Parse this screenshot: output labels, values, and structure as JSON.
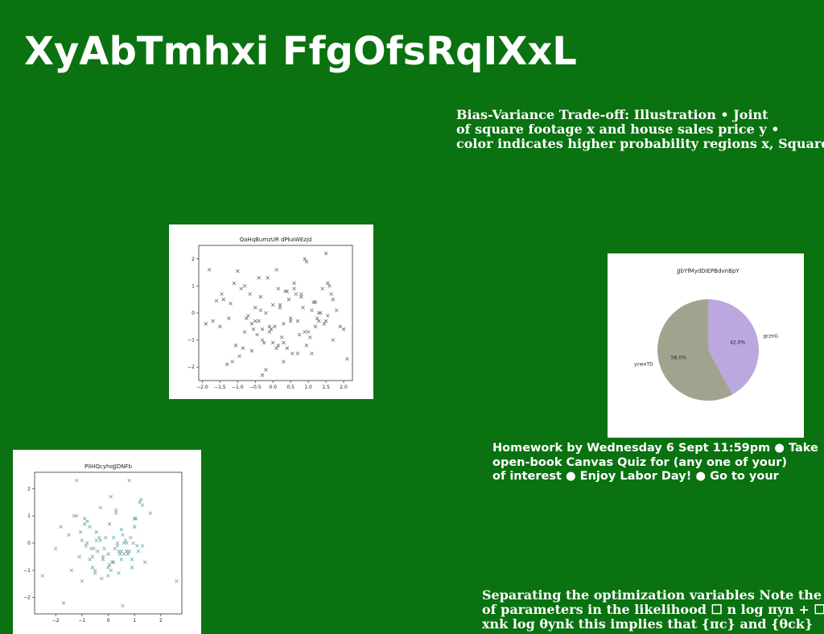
{
  "page": {
    "title": "XyAbTmhxi FfgOfsRqIXxL"
  },
  "text_blocks": {
    "bias_variance": {
      "lines": [
        "Bias-Variance Trade-off: Illustration • Joint",
        "of square footage x and house sales price y •",
        "color indicates higher probability regions x, Square"
      ]
    },
    "homework": {
      "lines": [
        "Homework by Wednesday 6 Sept 11:59pm ● Take",
        "open-book Canvas Quiz for (any one of your)",
        "of interest ● Enjoy Labor Day! ● Go to your"
      ]
    },
    "optimization": {
      "lines": [
        "Separating the optimization variables Note the",
        "of parameters in the likelihood ☐ n log πyn + ☐",
        "xnk log θynk this implies that {πc} and {θck}"
      ]
    }
  },
  "chart_data": [
    {
      "id": "scatter_a",
      "type": "scatter",
      "title": "QaHqBumzUR dPkaWEzjd",
      "marker": "x",
      "color": "#6e6e72",
      "xlim": [
        -2.1,
        2.25
      ],
      "ylim": [
        -2.5,
        2.5
      ],
      "xticks": [
        -2.0,
        -1.5,
        -1.0,
        -0.5,
        0.0,
        0.5,
        1.0,
        1.5,
        2.0
      ],
      "xtick_labels": [
        "−2.0",
        "−1.5",
        "−1.0",
        "−0.5",
        "0.0",
        "0.5",
        "1.0",
        "1.5",
        "2.0"
      ],
      "yticks": [
        -2,
        -1,
        0,
        1,
        2
      ],
      "ytick_labels": [
        "−2",
        "−1",
        "0",
        "1",
        "2"
      ],
      "x": [
        -1.8,
        -1.4,
        -1.6,
        -1.2,
        -1.0,
        -0.9,
        -0.8,
        -0.7,
        -0.6,
        -0.5,
        -0.4,
        -0.3,
        -0.2,
        -0.1,
        0.0,
        0.1,
        0.2,
        0.3,
        0.4,
        0.5,
        0.6,
        0.7,
        0.8,
        0.9,
        1.0,
        1.1,
        1.2,
        1.3,
        1.4,
        1.5,
        1.6,
        1.7,
        1.8,
        1.9,
        2.0,
        2.1,
        -1.9,
        -1.5,
        -1.3,
        -1.1,
        -0.95,
        -0.75,
        -0.55,
        -0.45,
        -0.35,
        -0.25,
        -0.15,
        -0.05,
        0.05,
        0.15,
        0.25,
        0.35,
        0.45,
        0.55,
        0.65,
        0.75,
        0.85,
        0.95,
        1.05,
        1.15,
        1.25,
        1.35,
        1.45,
        1.55,
        1.65,
        -1.7,
        -1.45,
        -1.25,
        -1.05,
        -0.85,
        -0.65,
        -0.5,
        -0.3,
        -0.2,
        -0.1,
        0.1,
        0.2,
        0.3,
        0.5,
        0.7,
        0.9,
        1.1,
        1.3,
        1.5,
        1.7,
        -0.6,
        -0.4,
        0.0,
        0.4,
        0.8,
        1.2,
        -0.3,
        0.3,
        0.6,
        -0.8,
        1.55,
        0.15,
        -0.35,
        0.95,
        -1.15
      ],
      "y": [
        1.6,
        0.5,
        0.45,
        0.35,
        1.55,
        0.9,
        1.0,
        -0.1,
        -0.4,
        0.2,
        1.3,
        -0.6,
        0.0,
        -0.5,
        -1.1,
        1.6,
        0.3,
        -1.8,
        0.8,
        -0.2,
        1.1,
        -0.3,
        0.6,
        2.0,
        -0.7,
        0.1,
        0.4,
        -0.3,
        0.9,
        2.2,
        1.0,
        -1.0,
        0.1,
        -0.5,
        -0.6,
        -1.7,
        -0.4,
        -0.5,
        -1.9,
        1.1,
        -1.6,
        -0.2,
        -0.6,
        -0.8,
        0.1,
        -1.1,
        1.3,
        -0.6,
        -0.5,
        -1.2,
        -0.9,
        0.8,
        0.5,
        -1.5,
        0.7,
        -0.8,
        0.2,
        1.9,
        -0.9,
        0.4,
        -0.2,
        0.0,
        -0.4,
        1.1,
        0.7,
        -0.3,
        0.7,
        -0.2,
        -1.2,
        -1.3,
        0.7,
        -0.3,
        -2.3,
        -2.1,
        -0.7,
        -1.3,
        0.2,
        -1.1,
        -0.3,
        -1.5,
        -0.7,
        -1.5,
        0.0,
        -0.3,
        0.5,
        -1.4,
        -0.3,
        0.3,
        -1.3,
        0.7,
        -0.5,
        -1.0,
        -0.4,
        0.9,
        -0.7,
        -0.1,
        0.9,
        0.6,
        -1.2,
        -1.8
      ]
    },
    {
      "id": "pie",
      "type": "pie",
      "title": "JJbYfMydDiEPBdvnBpY",
      "slices": [
        {
          "label": "gcznG",
          "value": 42.0,
          "pct_label": "42.0%",
          "color": "#bba8de"
        },
        {
          "label": "ycwxTD",
          "value": 58.0,
          "pct_label": "58.0%",
          "color": "#a2a38e"
        }
      ]
    },
    {
      "id": "scatter_b",
      "type": "scatter",
      "title": "PlIHQcyhoJJDNFb",
      "marker": "x",
      "color": "#6fa7a6",
      "xlim": [
        -2.8,
        2.8
      ],
      "ylim": [
        -2.6,
        2.6
      ],
      "xticks": [
        -2,
        -1,
        0,
        1,
        2
      ],
      "xtick_labels": [
        "−2",
        "−1",
        "0",
        "1",
        "2"
      ],
      "yticks": [
        -2,
        -1,
        0,
        1,
        2
      ],
      "ytick_labels": [
        "−2",
        "−1",
        "0",
        "1",
        "2"
      ],
      "x": [
        -2.5,
        -2.0,
        -1.8,
        -1.7,
        -1.5,
        -1.3,
        -1.2,
        -1.1,
        -1.0,
        -0.9,
        -0.85,
        -0.8,
        -0.7,
        -0.6,
        -0.5,
        -0.45,
        -0.4,
        -0.3,
        -0.2,
        -0.1,
        0.0,
        0.05,
        0.1,
        0.2,
        0.3,
        0.35,
        0.4,
        0.5,
        0.55,
        0.6,
        0.7,
        0.8,
        0.9,
        1.0,
        1.1,
        1.2,
        1.3,
        1.4,
        1.6,
        2.6,
        -1.2,
        -0.8,
        -0.6,
        -0.3,
        0.0,
        0.2,
        0.4,
        0.6,
        0.8,
        1.0,
        -1.0,
        -0.5,
        0.1,
        0.5,
        0.9,
        1.3,
        -0.9,
        -0.2,
        0.3,
        0.7,
        -1.4,
        -0.7,
        0.0,
        0.45,
        1.15,
        -1.05,
        -0.35,
        0.25,
        0.65,
        1.05,
        -0.15,
        0.15,
        0.75,
        -0.55,
        0.85,
        0.5,
        -0.25,
        0.95,
        0.55,
        -0.65,
        0.05,
        0.35,
        -0.45,
        1.25,
        0.7
      ],
      "y": [
        -1.2,
        -0.2,
        0.6,
        -2.2,
        0.3,
        1.0,
        2.3,
        -0.5,
        -1.4,
        0.9,
        -0.1,
        0.8,
        0.6,
        -0.5,
        -1.1,
        0.1,
        -0.3,
        1.3,
        -0.6,
        0.2,
        -0.4,
        0.7,
        1.7,
        -0.7,
        1.2,
        0.0,
        -1.1,
        0.5,
        -2.3,
        0.0,
        -0.3,
        2.3,
        -0.6,
        0.6,
        -0.1,
        1.5,
        1.4,
        -0.7,
        1.1,
        -1.4,
        1.0,
        0.0,
        -0.9,
        0.1,
        -0.9,
        0.2,
        -0.3,
        -0.4,
        -0.3,
        0.9,
        0.1,
        -1.0,
        -1.0,
        -0.6,
        -0.9,
        -0.1,
        0.7,
        -0.5,
        1.1,
        0.0,
        -1.0,
        -0.6,
        -1.2,
        -0.4,
        -0.3,
        0.4,
        0.2,
        -0.2,
        0.1,
        0.9,
        -0.2,
        -0.7,
        -0.4,
        -0.2,
        0.2,
        -0.3,
        -1.3,
        0.0,
        0.3,
        -0.2,
        -0.8,
        -0.1,
        0.4,
        1.6,
        -0.3
      ]
    }
  ]
}
